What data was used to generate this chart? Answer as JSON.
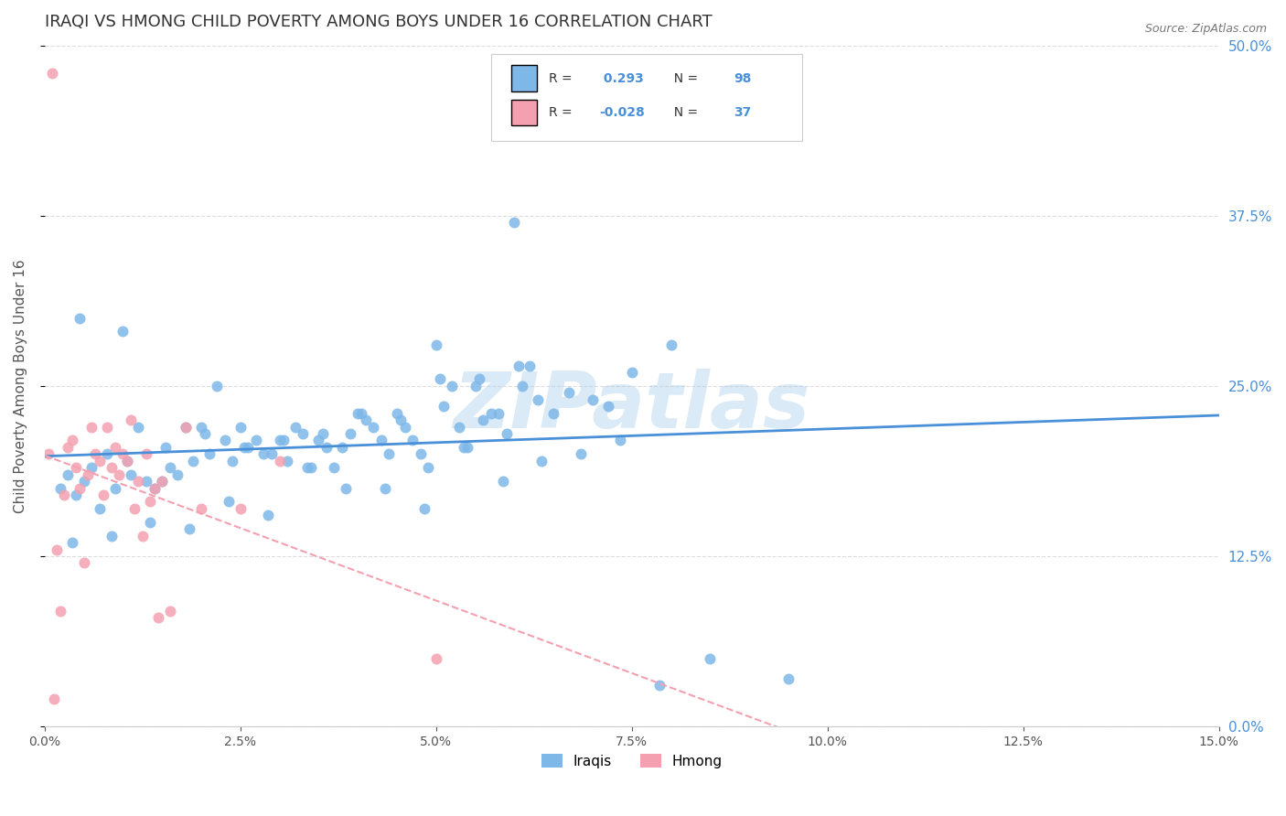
{
  "title": "IRAQI VS HMONG CHILD POVERTY AMONG BOYS UNDER 16 CORRELATION CHART",
  "source": "Source: ZipAtlas.com",
  "ylabel": "Child Poverty Among Boys Under 16",
  "x_tick_values": [
    0.0,
    2.5,
    5.0,
    7.5,
    10.0,
    12.5,
    15.0
  ],
  "y_tick_values": [
    0.0,
    12.5,
    25.0,
    37.5,
    50.0
  ],
  "xlim": [
    0.0,
    15.0
  ],
  "ylim": [
    0.0,
    50.0
  ],
  "iraqis_color": "#7eb8e8",
  "hmong_color": "#f4a0b0",
  "iraqis_line_color": "#4a90d9",
  "hmong_line_color": "#f4a0b0",
  "iraqis_R": 0.293,
  "iraqis_N": 98,
  "hmong_R": -0.028,
  "hmong_N": 37,
  "legend_iraqis": "Iraqis",
  "legend_hmong": "Hmong",
  "watermark": "ZIPatlas",
  "watermark_color": "#a0c8e8",
  "title_color": "#333333",
  "axis_label_color": "#555555",
  "tick_color_right": "#4a90d9",
  "grid_color": "#dddddd",
  "iraqis_scatter_x": [
    0.2,
    0.3,
    0.35,
    0.4,
    0.5,
    0.6,
    0.7,
    0.8,
    0.85,
    0.9,
    1.0,
    1.05,
    1.1,
    1.2,
    1.3,
    1.35,
    1.4,
    1.5,
    1.55,
    1.6,
    1.7,
    1.8,
    1.85,
    1.9,
    2.0,
    2.05,
    2.1,
    2.2,
    2.3,
    2.35,
    2.4,
    2.5,
    2.55,
    2.6,
    2.7,
    2.8,
    2.85,
    2.9,
    3.0,
    3.05,
    3.1,
    3.2,
    3.3,
    3.35,
    3.4,
    3.5,
    3.55,
    3.6,
    3.7,
    3.8,
    3.85,
    3.9,
    4.0,
    4.05,
    4.1,
    4.2,
    4.3,
    4.35,
    4.4,
    4.5,
    4.55,
    4.6,
    4.7,
    4.8,
    4.85,
    4.9,
    5.0,
    5.05,
    5.1,
    5.2,
    5.3,
    5.35,
    5.4,
    5.5,
    5.55,
    5.6,
    5.7,
    5.8,
    5.85,
    5.9,
    6.0,
    6.05,
    6.1,
    6.2,
    6.3,
    6.35,
    6.5,
    6.7,
    6.85,
    7.0,
    7.2,
    7.35,
    7.5,
    7.85,
    8.0,
    8.5,
    9.5,
    0.45
  ],
  "iraqis_scatter_y": [
    17.5,
    18.5,
    13.5,
    17.0,
    18.0,
    19.0,
    16.0,
    20.0,
    14.0,
    17.5,
    29.0,
    19.5,
    18.5,
    22.0,
    18.0,
    15.0,
    17.5,
    18.0,
    20.5,
    19.0,
    18.5,
    22.0,
    14.5,
    19.5,
    22.0,
    21.5,
    20.0,
    25.0,
    21.0,
    16.5,
    19.5,
    22.0,
    20.5,
    20.5,
    21.0,
    20.0,
    15.5,
    20.0,
    21.0,
    21.0,
    19.5,
    22.0,
    21.5,
    19.0,
    19.0,
    21.0,
    21.5,
    20.5,
    19.0,
    20.5,
    17.5,
    21.5,
    23.0,
    23.0,
    22.5,
    22.0,
    21.0,
    17.5,
    20.0,
    23.0,
    22.5,
    22.0,
    21.0,
    20.0,
    16.0,
    19.0,
    28.0,
    25.5,
    23.5,
    25.0,
    22.0,
    20.5,
    20.5,
    25.0,
    25.5,
    22.5,
    23.0,
    23.0,
    18.0,
    21.5,
    37.0,
    26.5,
    25.0,
    26.5,
    24.0,
    19.5,
    23.0,
    24.5,
    20.0,
    24.0,
    23.5,
    21.0,
    26.0,
    3.0,
    28.0,
    5.0,
    3.5,
    30.0
  ],
  "hmong_scatter_x": [
    0.05,
    0.1,
    0.12,
    0.15,
    0.2,
    0.25,
    0.3,
    0.35,
    0.4,
    0.45,
    0.5,
    0.55,
    0.6,
    0.65,
    0.7,
    0.75,
    0.8,
    0.85,
    0.9,
    0.95,
    1.0,
    1.05,
    1.1,
    1.15,
    1.2,
    1.25,
    1.3,
    1.35,
    1.4,
    1.45,
    1.5,
    1.6,
    1.8,
    2.0,
    2.5,
    3.0,
    5.0
  ],
  "hmong_scatter_y": [
    20.0,
    48.0,
    2.0,
    13.0,
    8.5,
    17.0,
    20.5,
    21.0,
    19.0,
    17.5,
    12.0,
    18.5,
    22.0,
    20.0,
    19.5,
    17.0,
    22.0,
    19.0,
    20.5,
    18.5,
    20.0,
    19.5,
    22.5,
    16.0,
    18.0,
    14.0,
    20.0,
    16.5,
    17.5,
    8.0,
    18.0,
    8.5,
    22.0,
    16.0,
    16.0,
    19.5,
    5.0
  ]
}
